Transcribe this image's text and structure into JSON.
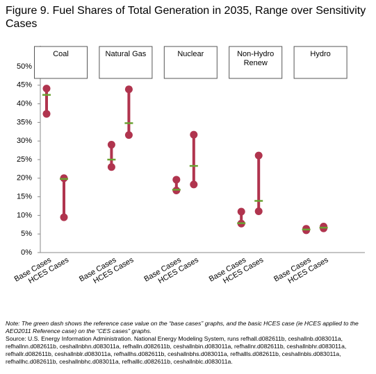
{
  "chart_data": {
    "type": "range",
    "title": "Figure 9. Fuel Shares of Total Generation in 2035, Range over Sensitivity Cases",
    "groups": [
      "Coal",
      "Natural Gas",
      "Nuclear",
      "Non-Hydro Renew",
      "Hydro"
    ],
    "categories": [
      "Base Cases",
      "HCES Cases",
      "Base Cases",
      "HCES Cases",
      "Base Cases",
      "HCES Cases",
      "Base Cases",
      "HCES Cases",
      "Base Cases",
      "HCES Cases"
    ],
    "low": [
      37.3,
      9.5,
      23.0,
      31.6,
      16.7,
      18.3,
      7.8,
      11.1,
      6.0,
      6.5
    ],
    "high": [
      44.1,
      20.0,
      29.0,
      43.9,
      19.6,
      31.7,
      11.0,
      26.1,
      6.4,
      7.0
    ],
    "reference": [
      42.4,
      19.8,
      25.0,
      34.8,
      16.9,
      23.3,
      7.9,
      13.9,
      6.2,
      6.7
    ],
    "color": "#b0344e",
    "reference_color": "#6aa232",
    "ylim": [
      0,
      50
    ],
    "yticks": [
      {
        "value": 0,
        "label": "0%"
      },
      {
        "value": 5,
        "label": "5%"
      },
      {
        "value": 10,
        "label": "10%"
      },
      {
        "value": 15,
        "label": "15%"
      },
      {
        "value": 20,
        "label": "20%"
      },
      {
        "value": 25,
        "label": "25%"
      },
      {
        "value": 30,
        "label": "30%"
      },
      {
        "value": 35,
        "label": "35%"
      },
      {
        "value": 40,
        "label": "40%"
      },
      {
        "value": 45,
        "label": "45%"
      },
      {
        "value": 50,
        "label": "50%"
      }
    ],
    "note": "Note: The green dash shows the reference case value on the “base cases” graphs, and the basic HCES case (ie HCES applied to the AEO2011 Reference case) on the “CES cases” graphs.",
    "source": "Source: U.S. Energy Information Administration. National Energy Modeling System, runs refhall.d082611b, ceshallnb.d083011a, refhallnn.d082611b, ceshallnbhn.d083011a, refhalln.d082611b, ceshallnbin.d083011a, refhallnr.d082611b, ceshallnbhr.d083011a, refhallr.d082611b, ceshallnblr.d083011a, refhallhs.d082611b, ceshallnbhs.d083011a, refhallls.d082611b, ceshallnbls.d083011a, refhallhc.d082611b, ceshallnbhc.d083011a, refhalllc.d082611b, ceshallnblc.d083011a."
  }
}
